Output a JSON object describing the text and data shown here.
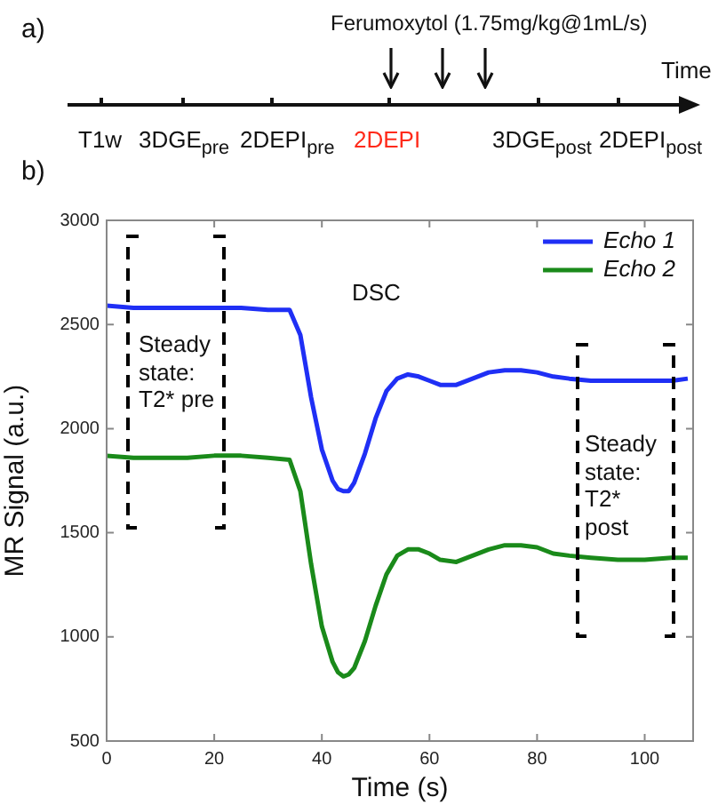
{
  "chart_data": {
    "type": "line",
    "xlabel": "Time (s)",
    "ylabel": "MR Signal (a.u.)",
    "x": [
      0,
      5,
      10,
      15,
      20,
      25,
      30,
      34,
      36,
      38,
      40,
      42,
      43,
      44,
      45,
      46,
      48,
      50,
      52,
      54,
      56,
      58,
      60,
      62,
      65,
      68,
      71,
      74,
      77,
      80,
      83,
      86,
      90,
      95,
      100,
      105,
      108
    ],
    "series": [
      {
        "name": "Echo 1",
        "color": "#1f2ff5",
        "values": [
          2590,
          2580,
          2580,
          2580,
          2580,
          2580,
          2570,
          2570,
          2450,
          2150,
          1900,
          1750,
          1710,
          1700,
          1700,
          1740,
          1880,
          2050,
          2180,
          2240,
          2260,
          2250,
          2230,
          2210,
          2210,
          2240,
          2270,
          2280,
          2280,
          2270,
          2250,
          2240,
          2230,
          2230,
          2230,
          2230,
          2240
        ]
      },
      {
        "name": "Echo 2",
        "color": "#1a8a1a",
        "values": [
          1870,
          1860,
          1860,
          1860,
          1870,
          1870,
          1860,
          1850,
          1700,
          1350,
          1050,
          880,
          830,
          810,
          820,
          850,
          980,
          1150,
          1300,
          1390,
          1420,
          1420,
          1400,
          1370,
          1360,
          1390,
          1420,
          1440,
          1440,
          1430,
          1400,
          1390,
          1380,
          1370,
          1370,
          1380,
          1380
        ]
      }
    ],
    "xlim": [
      0,
      109
    ],
    "xticks": [
      0,
      20,
      40,
      60,
      80,
      100
    ],
    "ylim": [
      500,
      3000
    ],
    "yticks": [
      500,
      1000,
      1500,
      2000,
      2500,
      3000
    ],
    "grid": false,
    "legend": "top right",
    "marker": "none",
    "line_style": "solid",
    "annotations": [
      "DSC",
      "Steady state: T2* pre",
      "Steady state: T2* post",
      "a)",
      "b)",
      "Ferumoxytol (1.75mg/kg@1mL/s)",
      "Time",
      "T1w",
      "3DGE$_{pre}$",
      "2DEPI$_{pre}$",
      "2DEPI",
      "3DGE$_{post}$",
      "2DEPI$_{post}$"
    ]
  }
}
